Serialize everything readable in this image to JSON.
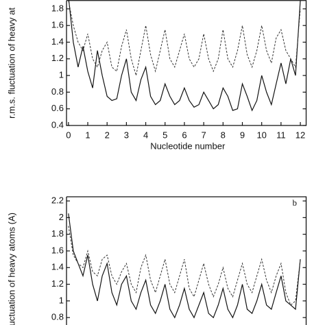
{
  "chart_data": [
    {
      "type": "line",
      "xlabel": "Nucleotide number",
      "ylabel": "r.m.s. fluctuation of heavy at",
      "xlim": [
        -0.1,
        12.3
      ],
      "ylim": [
        0.4,
        1.9
      ],
      "xticks": [
        0,
        1,
        2,
        3,
        4,
        5,
        6,
        7,
        8,
        9,
        10,
        11,
        12
      ],
      "yticks": [
        0.4,
        0.6,
        0.8,
        1,
        1.2,
        1.4,
        1.6,
        1.8
      ],
      "x": [
        0,
        0.25,
        0.5,
        0.75,
        1,
        1.25,
        1.5,
        1.75,
        2,
        2.25,
        2.5,
        2.75,
        3,
        3.25,
        3.5,
        3.75,
        4,
        4.25,
        4.5,
        4.75,
        5,
        5.25,
        5.5,
        5.75,
        6,
        6.25,
        6.5,
        6.75,
        7,
        7.25,
        7.5,
        7.75,
        8,
        8.25,
        8.5,
        8.75,
        9,
        9.25,
        9.5,
        9.75,
        10,
        10.25,
        10.5,
        10.75,
        11,
        11.25,
        11.5,
        11.75,
        12
      ],
      "series": [
        {
          "color": "#111111",
          "dash": "solid",
          "values": [
            1.95,
            1.4,
            1.1,
            1.35,
            1.05,
            0.85,
            1.3,
            1.0,
            0.75,
            0.7,
            0.72,
            1.0,
            1.2,
            0.8,
            0.7,
            0.95,
            1.1,
            0.75,
            0.65,
            0.7,
            0.9,
            0.75,
            0.65,
            0.7,
            0.85,
            0.7,
            0.62,
            0.65,
            0.8,
            0.7,
            0.6,
            0.65,
            0.85,
            0.75,
            0.58,
            0.6,
            0.9,
            0.75,
            0.58,
            0.7,
            1.0,
            0.8,
            0.65,
            0.9,
            1.15,
            0.9,
            1.2,
            1.0,
            1.9
          ]
        },
        {
          "color": "#333333",
          "dash": "dashed",
          "values": [
            1.9,
            1.6,
            1.4,
            1.3,
            1.5,
            1.2,
            1.1,
            1.3,
            1.4,
            1.1,
            1.05,
            1.35,
            1.55,
            1.2,
            1.0,
            1.3,
            1.6,
            1.25,
            1.05,
            1.3,
            1.55,
            1.2,
            1.1,
            1.3,
            1.5,
            1.2,
            1.1,
            1.2,
            1.5,
            1.2,
            1.05,
            1.2,
            1.55,
            1.2,
            1.1,
            1.3,
            1.6,
            1.25,
            1.1,
            1.3,
            1.6,
            1.3,
            1.15,
            1.45,
            1.55,
            1.3,
            1.2,
            1.1,
            1.8
          ]
        }
      ]
    },
    {
      "type": "line",
      "ylabel": "fluctuation of heavy atoms (A)",
      "annotation": "b",
      "xlim": [
        -0.1,
        12.3
      ],
      "ylim": [
        0.7,
        2.25
      ],
      "yticks": [
        0.8,
        1,
        1.2,
        1.4,
        1.6,
        1.8,
        2,
        2.2
      ],
      "x": [
        0,
        0.25,
        0.5,
        0.75,
        1,
        1.25,
        1.5,
        1.75,
        2,
        2.25,
        2.5,
        2.75,
        3,
        3.25,
        3.5,
        3.75,
        4,
        4.25,
        4.5,
        4.75,
        5,
        5.25,
        5.5,
        5.75,
        6,
        6.25,
        6.5,
        6.75,
        7,
        7.25,
        7.5,
        7.75,
        8,
        8.25,
        8.5,
        8.75,
        9,
        9.25,
        9.5,
        9.75,
        10,
        10.25,
        10.5,
        10.75,
        11,
        11.25,
        11.5,
        11.75,
        12
      ],
      "series": [
        {
          "color": "#111111",
          "dash": "solid",
          "values": [
            2.05,
            1.6,
            1.45,
            1.3,
            1.55,
            1.2,
            1.0,
            1.3,
            1.45,
            1.1,
            0.95,
            1.2,
            1.3,
            1.0,
            0.9,
            1.1,
            1.25,
            0.95,
            0.85,
            1.0,
            1.2,
            0.9,
            0.8,
            0.95,
            1.15,
            0.9,
            0.8,
            0.95,
            1.1,
            0.85,
            0.8,
            0.95,
            1.15,
            0.9,
            0.8,
            0.95,
            1.2,
            0.9,
            0.85,
            1.0,
            1.2,
            0.95,
            0.9,
            1.1,
            1.3,
            1.0,
            0.95,
            0.9,
            1.5
          ]
        },
        {
          "color": "#333333",
          "dash": "dashed",
          "values": [
            1.9,
            1.55,
            1.45,
            1.4,
            1.6,
            1.35,
            1.3,
            1.5,
            1.55,
            1.3,
            1.2,
            1.35,
            1.45,
            1.2,
            1.1,
            1.4,
            1.55,
            1.25,
            1.1,
            1.3,
            1.5,
            1.2,
            1.1,
            1.3,
            1.5,
            1.15,
            1.05,
            1.25,
            1.45,
            1.2,
            1.05,
            1.2,
            1.4,
            1.15,
            1.05,
            1.25,
            1.45,
            1.2,
            1.1,
            1.3,
            1.5,
            1.25,
            1.1,
            1.3,
            1.45,
            1.1,
            0.95,
            1.0,
            1.5
          ]
        }
      ]
    }
  ]
}
